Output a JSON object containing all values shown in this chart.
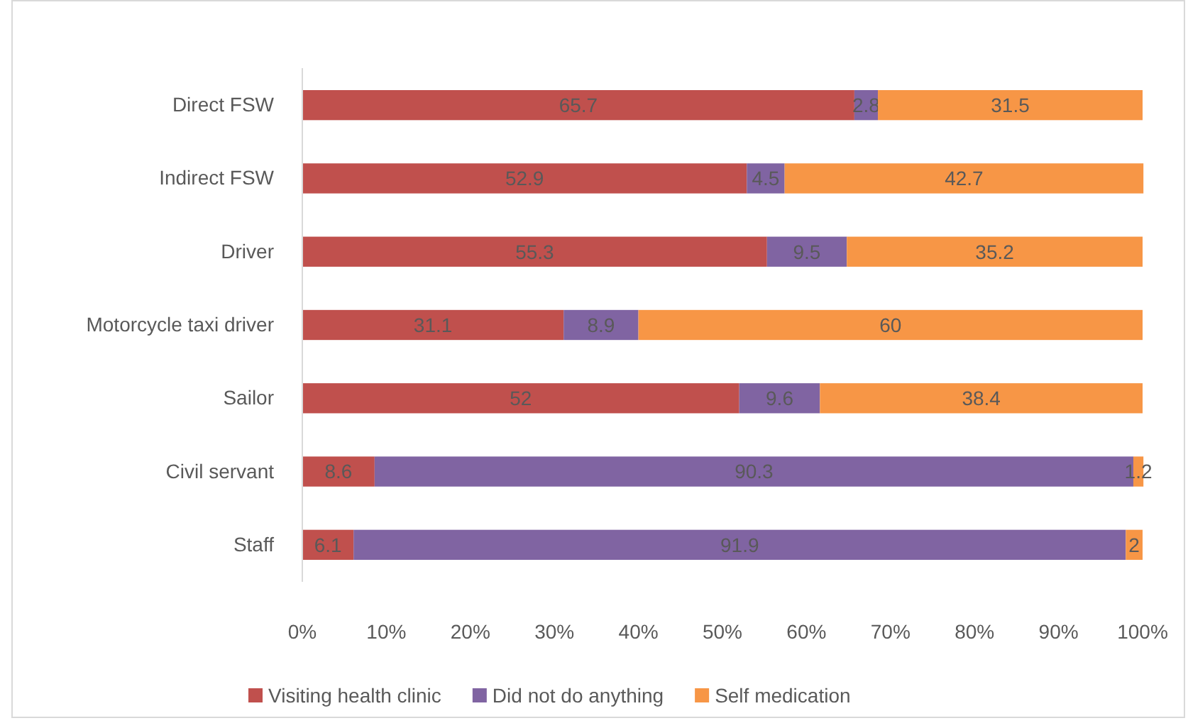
{
  "chart_data": {
    "type": "bar",
    "orientation": "horizontal",
    "stacked": true,
    "data_labels": true,
    "legend": "bottom",
    "grid": false,
    "categories": [
      "Direct FSW",
      "Indirect FSW",
      "Driver",
      "Motorcycle taxi driver",
      "Sailor ",
      "Civil servant",
      "Staff"
    ],
    "series": [
      {
        "name": "Visiting health clinic",
        "color": "#c0504d",
        "values": [
          65.7,
          52.9,
          55.3,
          31.1,
          52,
          8.6,
          6.1
        ]
      },
      {
        "name": "Did not do anything",
        "color": "#8064a2",
        "values": [
          2.8,
          4.5,
          9.5,
          8.9,
          9.6,
          90.3,
          91.9
        ]
      },
      {
        "name": "Self medication",
        "color": "#f79646",
        "values": [
          31.5,
          42.7,
          35.2,
          60,
          38.4,
          1.2,
          2
        ]
      }
    ],
    "xlim": [
      0,
      100
    ],
    "xticks": [
      {
        "value": 0,
        "label": "0%"
      },
      {
        "value": 10,
        "label": "10%"
      },
      {
        "value": 20,
        "label": "20%"
      },
      {
        "value": 30,
        "label": "30%"
      },
      {
        "value": 40,
        "label": "40%"
      },
      {
        "value": 50,
        "label": "50%"
      },
      {
        "value": 60,
        "label": "60%"
      },
      {
        "value": 70,
        "label": "70%"
      },
      {
        "value": 80,
        "label": "80%"
      },
      {
        "value": 90,
        "label": "90%"
      },
      {
        "value": 100,
        "label": "100%"
      }
    ]
  }
}
